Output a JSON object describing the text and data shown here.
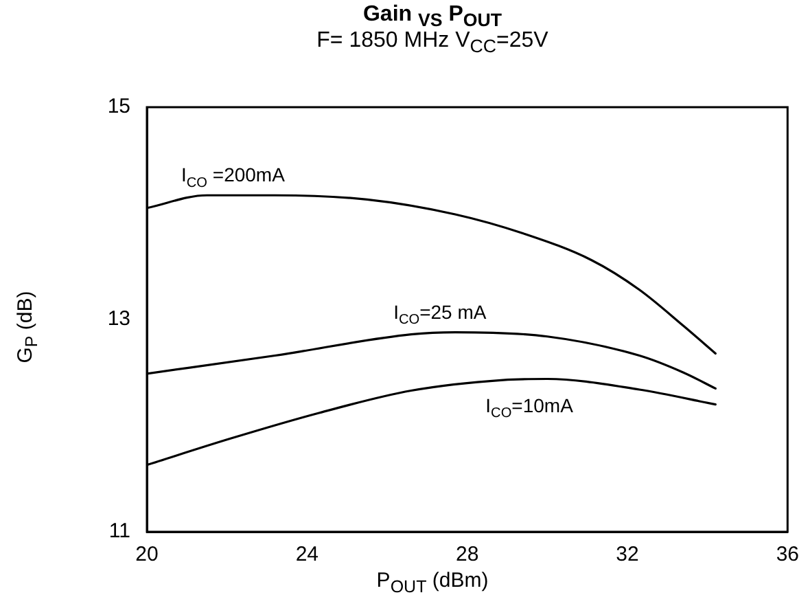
{
  "chart_data": {
    "type": "line",
    "title": "Gain $_{VS}$ P$_{OUT}$",
    "subtitle": "F= 1850 MHz V$_{CC}$=25V",
    "xlabel": "P$_{OUT}$ (dBm)",
    "ylabel": "G$_{P}$ (dB)",
    "xlim": [
      20,
      36
    ],
    "xticks": [
      20,
      24,
      28,
      32,
      36
    ],
    "ylim": [
      11,
      15
    ],
    "yticks": [
      11,
      13,
      15
    ],
    "grid": false,
    "legend": false,
    "marker": "none",
    "line_style": "solid",
    "series": [
      {
        "name": "I$_{CO}$ =200mA",
        "color": "#000000",
        "x": [
          20,
          21.5,
          23.2,
          25.5,
          27.7,
          29.4,
          31.1,
          32.3,
          33.4,
          34.2
        ],
        "values": [
          14.05,
          14.17,
          14.17,
          14.13,
          13.99,
          13.81,
          13.56,
          13.28,
          12.94,
          12.68
        ]
      },
      {
        "name": "I$_{CO}$=25 mA",
        "color": "#000000",
        "x": [
          20,
          23.2,
          26.6,
          27.7,
          30.0,
          32.3,
          33.4,
          34.2
        ],
        "values": [
          12.49,
          12.66,
          12.86,
          12.88,
          12.84,
          12.66,
          12.5,
          12.35
        ]
      },
      {
        "name": "I$_{CO}$=10mA",
        "color": "#000000",
        "x": [
          20,
          22.1,
          24.3,
          26.6,
          28.9,
          30.0,
          32.3,
          34.2
        ],
        "values": [
          11.63,
          11.88,
          12.12,
          12.33,
          12.43,
          12.44,
          12.34,
          12.2
        ]
      }
    ]
  }
}
